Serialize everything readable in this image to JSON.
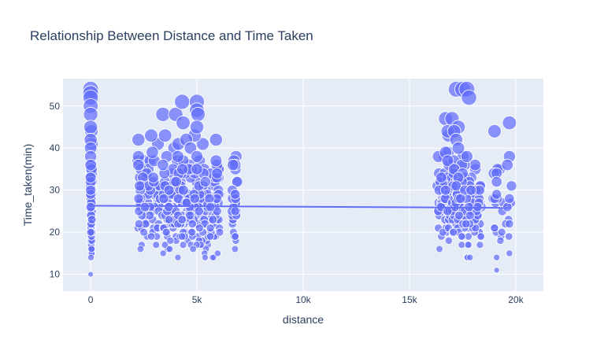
{
  "chart_data": {
    "type": "scatter",
    "title": "Relationship Between Distance and Time Taken",
    "xlabel": "distance",
    "ylabel": "Time_taken(min)",
    "xlim": [
      -1300,
      21300
    ],
    "ylim": [
      6,
      56.5
    ],
    "x_ticks": [
      {
        "value": 0,
        "label": "0"
      },
      {
        "value": 5000,
        "label": "5k"
      },
      {
        "value": 10000,
        "label": "10k"
      },
      {
        "value": 15000,
        "label": "15k"
      },
      {
        "value": 20000,
        "label": "20k"
      }
    ],
    "y_ticks": [
      {
        "value": 10,
        "label": "10"
      },
      {
        "value": 20,
        "label": "20"
      },
      {
        "value": 30,
        "label": "30"
      },
      {
        "value": 40,
        "label": "40"
      },
      {
        "value": 50,
        "label": "50"
      }
    ],
    "grid": true,
    "legend": "none",
    "colors": {
      "marker": "#636efa",
      "plot_bg": "#e5ecf6",
      "grid": "#ffffff",
      "text": "#2a3f5f",
      "title": "#2a3f5f"
    },
    "marker_note": "bubble size grows with time taken",
    "trendline": {
      "x": [
        0,
        19800
      ],
      "y": [
        26.3,
        25.8
      ]
    },
    "clusters": [
      {
        "x_min": 0,
        "x_max": 60,
        "count": 90
      },
      {
        "x_min": 2200,
        "x_max": 3400,
        "count": 70
      },
      {
        "x_min": 3400,
        "x_max": 6100,
        "count": 230
      },
      {
        "x_min": 6600,
        "x_max": 6900,
        "count": 30
      },
      {
        "x_min": 16300,
        "x_max": 17000,
        "count": 60
      },
      {
        "x_min": 17000,
        "x_max": 18400,
        "count": 140
      },
      {
        "x_min": 18900,
        "x_max": 19800,
        "count": 22
      }
    ],
    "highlight_points": [
      {
        "x": 0,
        "y": 54
      },
      {
        "x": 0,
        "y": 53
      },
      {
        "x": 0,
        "y": 52
      },
      {
        "x": 0,
        "y": 50
      },
      {
        "x": 0,
        "y": 48
      },
      {
        "x": 0,
        "y": 45
      },
      {
        "x": 0,
        "y": 42
      },
      {
        "x": 0,
        "y": 40
      },
      {
        "x": 0,
        "y": 38
      },
      {
        "x": 0,
        "y": 36
      },
      {
        "x": 0,
        "y": 33
      },
      {
        "x": 0,
        "y": 30
      },
      {
        "x": 0,
        "y": 26
      },
      {
        "x": 0,
        "y": 20
      },
      {
        "x": 0,
        "y": 10
      },
      {
        "x": 2250,
        "y": 42
      },
      {
        "x": 2250,
        "y": 38
      },
      {
        "x": 2250,
        "y": 36
      },
      {
        "x": 2300,
        "y": 31
      },
      {
        "x": 2850,
        "y": 43
      },
      {
        "x": 2900,
        "y": 39
      },
      {
        "x": 2950,
        "y": 33
      },
      {
        "x": 3400,
        "y": 48
      },
      {
        "x": 3500,
        "y": 43
      },
      {
        "x": 3400,
        "y": 36
      },
      {
        "x": 4000,
        "y": 48
      },
      {
        "x": 4300,
        "y": 51
      },
      {
        "x": 4350,
        "y": 46
      },
      {
        "x": 4500,
        "y": 42
      },
      {
        "x": 4100,
        "y": 38
      },
      {
        "x": 4700,
        "y": 40
      },
      {
        "x": 5000,
        "y": 51
      },
      {
        "x": 5000,
        "y": 49
      },
      {
        "x": 5050,
        "y": 48
      },
      {
        "x": 5000,
        "y": 45
      },
      {
        "x": 5000,
        "y": 38
      },
      {
        "x": 5000,
        "y": 35
      },
      {
        "x": 5400,
        "y": 32
      },
      {
        "x": 5900,
        "y": 42
      },
      {
        "x": 5900,
        "y": 37
      },
      {
        "x": 5950,
        "y": 34
      },
      {
        "x": 4900,
        "y": 28
      },
      {
        "x": 5100,
        "y": 25
      },
      {
        "x": 6800,
        "y": 36
      },
      {
        "x": 6700,
        "y": 36
      },
      {
        "x": 6800,
        "y": 29
      },
      {
        "x": 6800,
        "y": 25
      },
      {
        "x": 6800,
        "y": 19
      },
      {
        "x": 17200,
        "y": 54
      },
      {
        "x": 17500,
        "y": 54
      },
      {
        "x": 17700,
        "y": 54
      },
      {
        "x": 17800,
        "y": 52
      },
      {
        "x": 16700,
        "y": 47
      },
      {
        "x": 17000,
        "y": 47
      },
      {
        "x": 17300,
        "y": 45
      },
      {
        "x": 16800,
        "y": 44
      },
      {
        "x": 17100,
        "y": 44
      },
      {
        "x": 17200,
        "y": 42
      },
      {
        "x": 17300,
        "y": 40
      },
      {
        "x": 16700,
        "y": 39
      },
      {
        "x": 17700,
        "y": 38
      },
      {
        "x": 16800,
        "y": 37
      },
      {
        "x": 17100,
        "y": 35
      },
      {
        "x": 17500,
        "y": 34
      },
      {
        "x": 17300,
        "y": 33
      },
      {
        "x": 16500,
        "y": 33
      },
      {
        "x": 17200,
        "y": 31
      },
      {
        "x": 17600,
        "y": 30
      },
      {
        "x": 18300,
        "y": 30
      },
      {
        "x": 17900,
        "y": 30
      },
      {
        "x": 16700,
        "y": 30
      },
      {
        "x": 17400,
        "y": 28
      },
      {
        "x": 17800,
        "y": 26
      },
      {
        "x": 18200,
        "y": 26
      },
      {
        "x": 16800,
        "y": 25
      },
      {
        "x": 19000,
        "y": 44
      },
      {
        "x": 19700,
        "y": 46
      },
      {
        "x": 19100,
        "y": 34
      },
      {
        "x": 19100,
        "y": 32
      },
      {
        "x": 19100,
        "y": 29
      },
      {
        "x": 19700,
        "y": 28
      },
      {
        "x": 19700,
        "y": 22
      },
      {
        "x": 19000,
        "y": 21
      },
      {
        "x": 19700,
        "y": 15
      },
      {
        "x": 19100,
        "y": 14
      },
      {
        "x": 19100,
        "y": 11
      }
    ]
  }
}
